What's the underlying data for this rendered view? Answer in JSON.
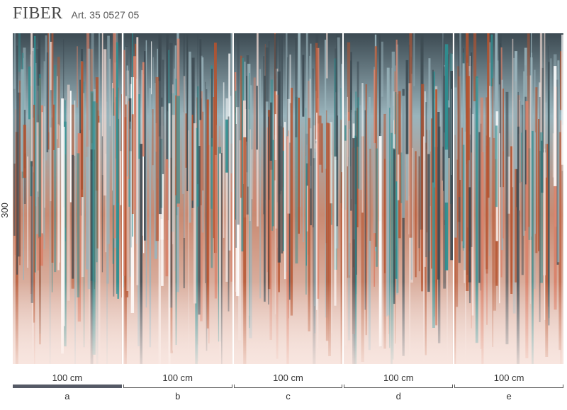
{
  "header": {
    "title": "FIBER",
    "article": "Art. 35 0527 05"
  },
  "height_label": "300 cm",
  "panels": [
    {
      "letter": "a",
      "width": "100 cm",
      "selected": true
    },
    {
      "letter": "b",
      "width": "100 cm",
      "selected": false
    },
    {
      "letter": "c",
      "width": "100 cm",
      "selected": false
    },
    {
      "letter": "d",
      "width": "100 cm",
      "selected": false
    },
    {
      "letter": "e",
      "width": "100 cm",
      "selected": false
    }
  ],
  "colors": {
    "dark": "#3c4a52",
    "teal": "#2e8e90",
    "grey_blue": "#9ab4bc",
    "rust": "#b5532f",
    "blush": "#ebd6cf",
    "selected_bar": "#555a66"
  }
}
